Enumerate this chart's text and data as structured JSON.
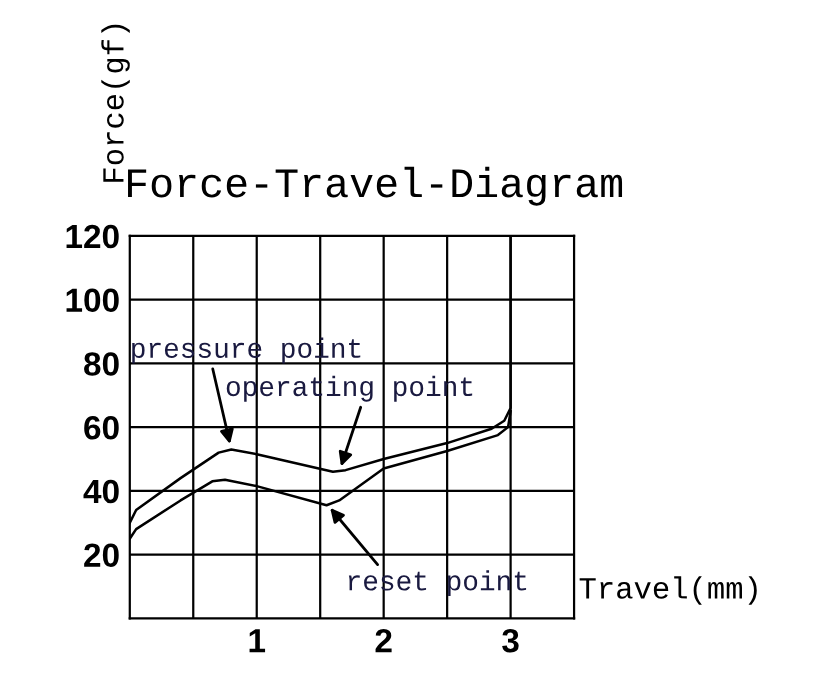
{
  "chart_data": {
    "type": "line",
    "title": "Force-Travel-Diagram",
    "xlabel": "Travel(mm)",
    "ylabel": "Force(gf)",
    "series": [
      {
        "color": "#000000",
        "x": [
          0,
          0.05,
          0.4,
          0.7,
          0.8,
          1.0,
          1.6,
          1.7,
          2.0,
          2.5,
          2.85,
          2.95,
          3.0,
          3.0
        ],
        "values": [
          30,
          34,
          44,
          52,
          53,
          51.5,
          46,
          46.5,
          50,
          55,
          59.5,
          62,
          66,
          120
        ]
      },
      {
        "color": "#000000",
        "x": [
          0,
          0.05,
          0.4,
          0.65,
          0.75,
          1.0,
          1.55,
          1.65,
          2.0,
          2.5,
          2.9,
          2.98,
          3.0
        ],
        "values": [
          25,
          28,
          37,
          43,
          43.5,
          41.5,
          35.5,
          37,
          47,
          52.5,
          57.5,
          60,
          65
        ]
      }
    ],
    "annotations": [
      {
        "text": "pressure point",
        "x": 0.8,
        "y": 53
      },
      {
        "text": "operating point",
        "x": 1.65,
        "y": 46
      },
      {
        "text": "reset point",
        "x": 1.55,
        "y": 36
      }
    ],
    "xlim": [
      0,
      3.5
    ],
    "ylim": [
      0,
      120
    ],
    "xticks": [
      {
        "value": 0.5,
        "label": null
      },
      1,
      {
        "value": 1.5,
        "label": null
      },
      2,
      {
        "value": 2.5,
        "label": null
      },
      3
    ],
    "yticks": [
      20,
      40,
      60,
      80,
      100,
      120
    ],
    "grid": true
  }
}
